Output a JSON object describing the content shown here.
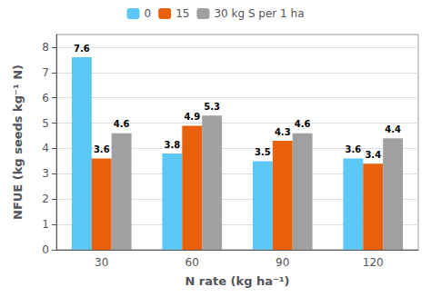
{
  "chart_data": {
    "type": "bar",
    "categories": [
      "30",
      "60",
      "90",
      "120"
    ],
    "series": [
      {
        "name": "0",
        "color": "#5BC8F5",
        "values": [
          7.6,
          3.8,
          3.5,
          3.6
        ]
      },
      {
        "name": "15",
        "color": "#E8600A",
        "values": [
          3.6,
          4.9,
          4.3,
          3.4
        ]
      },
      {
        "name": "30 kg S per 1 ha",
        "color": "#A0A0A0",
        "values": [
          4.6,
          5.3,
          4.6,
          4.4
        ]
      }
    ],
    "xlabel": "N rate (kg ha⁻¹)",
    "ylabel": "NFUE (kg seeds kg⁻¹ N)",
    "ylim": [
      0,
      8.5
    ],
    "yticks": [
      0,
      1,
      2,
      3,
      4,
      5,
      6,
      7,
      8
    ],
    "grid": true,
    "legend": "upper center",
    "data_labels": true
  }
}
